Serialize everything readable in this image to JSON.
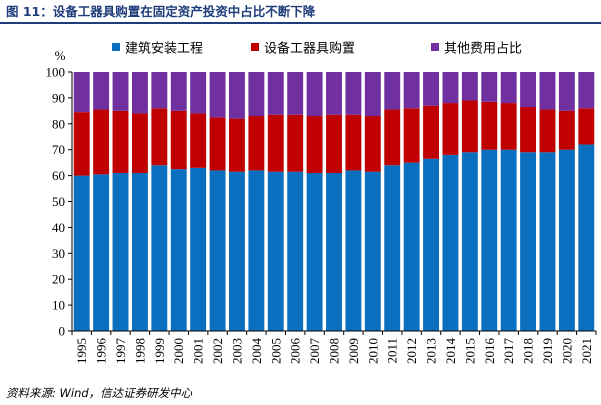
{
  "figure": {
    "title": "图 11：设备工器具购置在固定资产投资中占比不断下降",
    "source": "资料来源: Wind，信达证券研发中心"
  },
  "chart_data": {
    "type": "bar",
    "stacked": true,
    "percent_stacked": true,
    "ylabel": "%",
    "ylim": [
      0,
      100
    ],
    "yticks": [
      0,
      10,
      20,
      30,
      40,
      50,
      60,
      70,
      80,
      90,
      100
    ],
    "legend_position": "top",
    "categories": [
      "1995",
      "1996",
      "1997",
      "1998",
      "1999",
      "2000",
      "2001",
      "2002",
      "2003",
      "2004",
      "2005",
      "2006",
      "2007",
      "2008",
      "2009",
      "2010",
      "2011",
      "2012",
      "2013",
      "2014",
      "2015",
      "2016",
      "2017",
      "2018",
      "2019",
      "2020",
      "2021"
    ],
    "series": [
      {
        "name": "建筑安装工程",
        "color": "#0b6fc0",
        "values": [
          60,
          60.5,
          61,
          61,
          64,
          62.5,
          63,
          62,
          61.5,
          62,
          61.5,
          61.5,
          61,
          61,
          62,
          61.5,
          64,
          65,
          66.5,
          68,
          69,
          70,
          70,
          69,
          69,
          70,
          72
        ]
      },
      {
        "name": "设备工器具购置",
        "color": "#c00000",
        "values": [
          24.5,
          25,
          24,
          23,
          22,
          22.5,
          21,
          20.5,
          20.5,
          21,
          22,
          22,
          22,
          22.5,
          21.5,
          21.5,
          21.5,
          21,
          20.5,
          20,
          20,
          18.5,
          18,
          17.5,
          16.5,
          15,
          14
        ]
      },
      {
        "name": "其他费用占比",
        "color": "#7030a0",
        "values": [
          15.5,
          14.5,
          15,
          16,
          14,
          15,
          16,
          17.5,
          18,
          17,
          16.5,
          16.5,
          17,
          16.5,
          16.5,
          17,
          14.5,
          14,
          13,
          12,
          11,
          11.5,
          12,
          13.5,
          14.5,
          15,
          14
        ]
      }
    ]
  }
}
